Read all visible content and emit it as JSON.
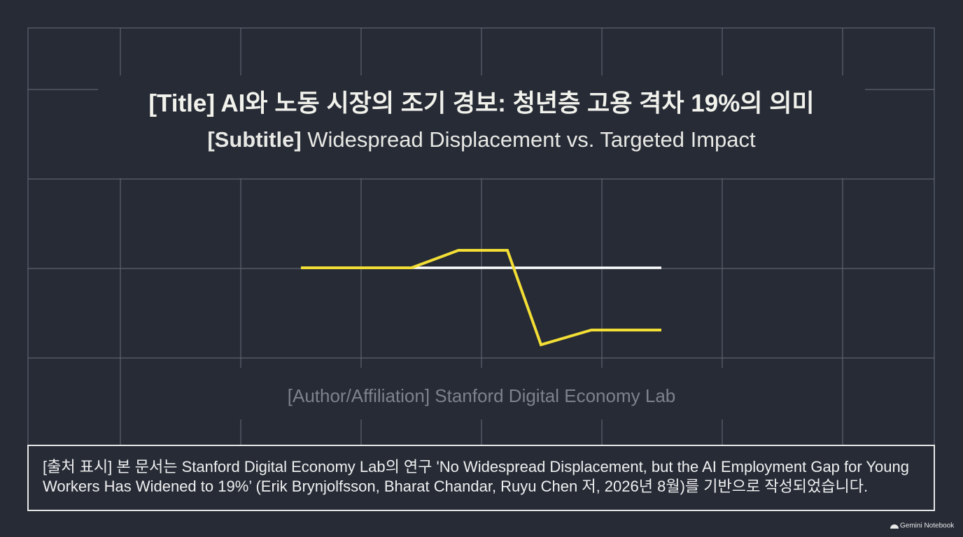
{
  "header": {
    "title": "[Title] AI와 노동 시장의 조기 경보: 청년층 고용 격차 19%의 의미",
    "subtitle_label": "[Subtitle]",
    "subtitle_text": "Widespread Displacement vs. Targeted Impact"
  },
  "author": "[Author/Affiliation] Stanford Digital Economy Lab",
  "source_note": {
    "lines": [
      "[출처 표시] 본 문서는 Stanford Digital Economy Lab의 연구 'No Widespread Displacement, but the AI Employment Gap for Young",
      "Workers Has Widened to 19%’ (Erik Brynjolfsson, Bharat Chandar, Ruyu Chen 저, 2026년 8월)를 기반으로 작성되었습니다."
    ]
  },
  "watermark": "Gemini Notebook"
}
